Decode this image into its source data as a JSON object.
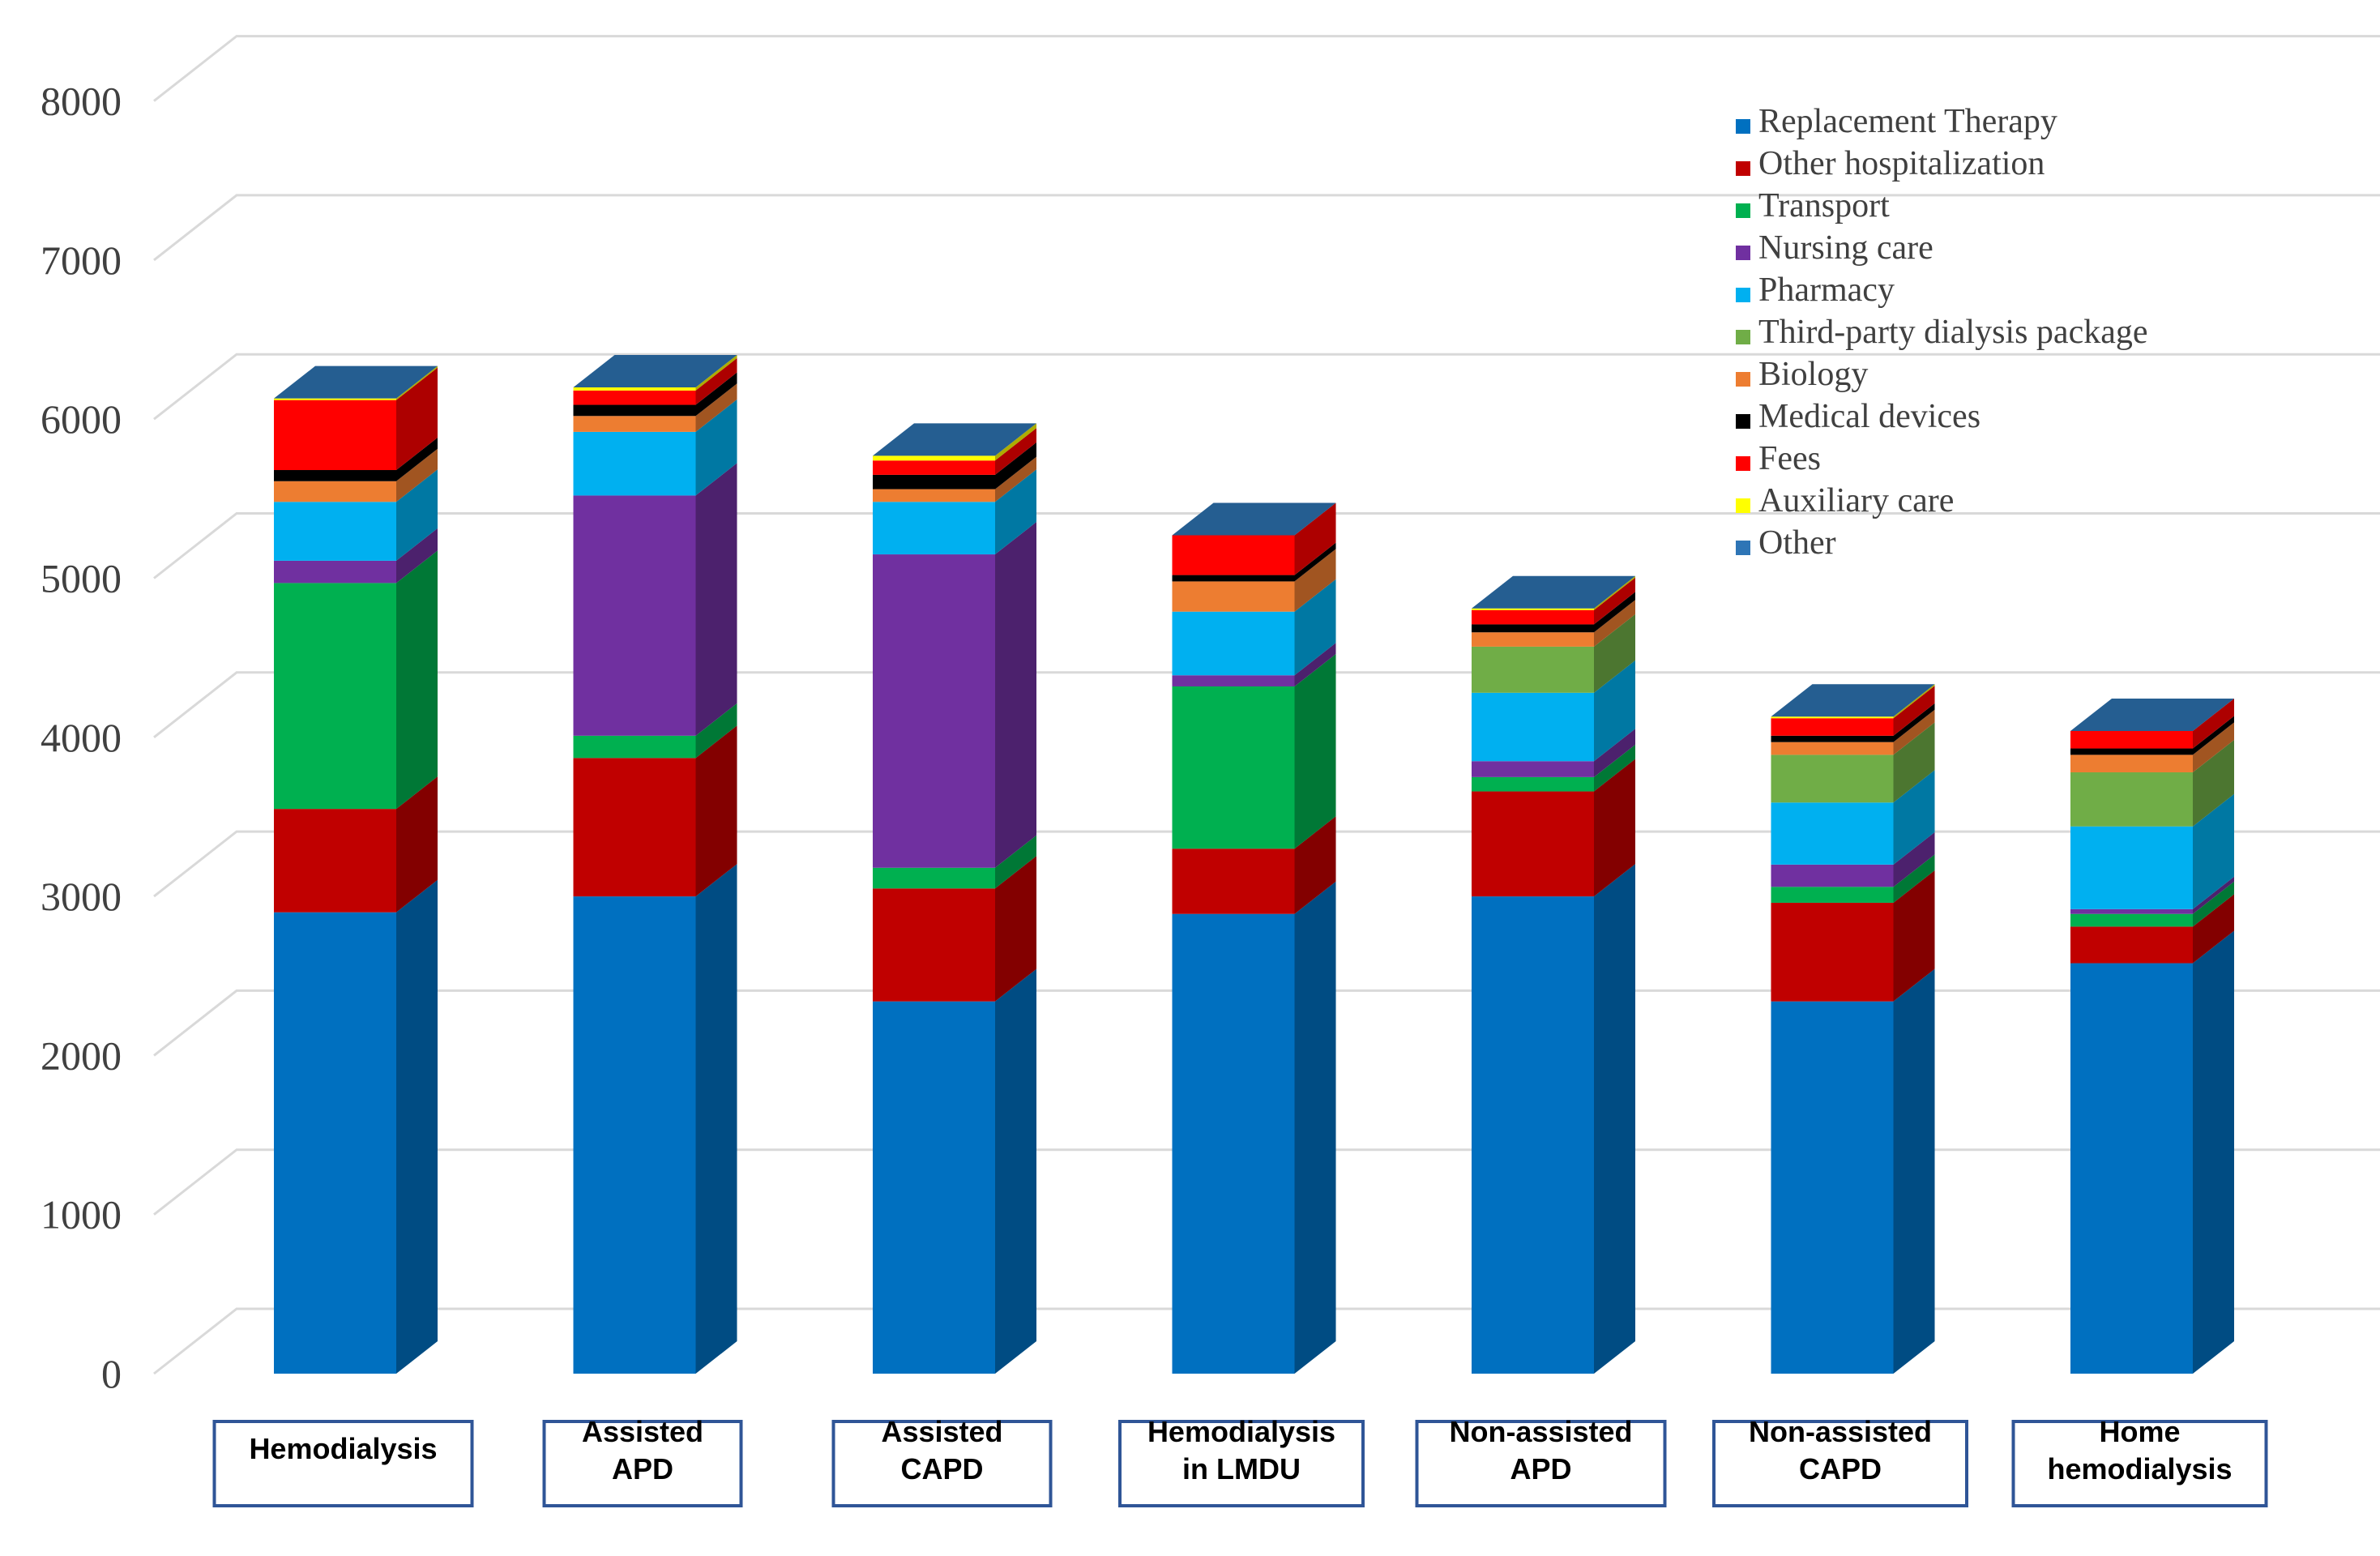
{
  "chart_data": {
    "type": "bar",
    "stacked": true,
    "style": "3d-column",
    "ylim": [
      0,
      8000
    ],
    "yticks": [
      0,
      1000,
      2000,
      3000,
      4000,
      5000,
      6000,
      7000,
      8000
    ],
    "grid": true,
    "legend_position": "top-right",
    "categories": [
      [
        "Hemodialysis"
      ],
      [
        "Assisted",
        "APD"
      ],
      [
        "Assisted",
        "CAPD"
      ],
      [
        "Hemodialysis",
        "in LMDU"
      ],
      [
        "Non-assisted",
        "APD"
      ],
      [
        "Non-assisted",
        "CAPD"
      ],
      [
        "Home",
        "hemodialysis"
      ]
    ],
    "series": [
      {
        "name": "Replacement Therapy",
        "color": "#0070C0",
        "values": [
          2900,
          3000,
          2340,
          2890,
          3000,
          2340,
          2580
        ]
      },
      {
        "name": "Other hospitalization",
        "color": "#C00000",
        "values": [
          650,
          870,
          710,
          410,
          660,
          620,
          230
        ]
      },
      {
        "name": "Transport",
        "color": "#00B050",
        "values": [
          1420,
          140,
          130,
          1020,
          90,
          100,
          80
        ]
      },
      {
        "name": "Nursing care",
        "color": "#7030A0",
        "values": [
          140,
          1510,
          1970,
          70,
          100,
          140,
          30
        ]
      },
      {
        "name": "Pharmacy",
        "color": "#00B0F0",
        "values": [
          370,
          400,
          330,
          400,
          430,
          390,
          520
        ]
      },
      {
        "name": "Third-party dialysis package",
        "color": "#70AD47",
        "values": [
          0,
          0,
          0,
          0,
          290,
          300,
          340
        ]
      },
      {
        "name": "Biology",
        "color": "#ED7D31",
        "values": [
          130,
          100,
          80,
          190,
          90,
          80,
          110
        ]
      },
      {
        "name": "Medical devices",
        "color": "#000000",
        "values": [
          70,
          70,
          90,
          40,
          50,
          40,
          40
        ]
      },
      {
        "name": "Fees",
        "color": "#FF0000",
        "values": [
          440,
          90,
          90,
          250,
          90,
          110,
          110
        ]
      },
      {
        "name": "Auxiliary care",
        "color": "#FFFF00",
        "values": [
          10,
          20,
          30,
          0,
          10,
          10,
          0
        ]
      },
      {
        "name": "Other",
        "color": "#2E75B6",
        "values": [
          0,
          0,
          0,
          0,
          0,
          0,
          0
        ]
      }
    ]
  }
}
